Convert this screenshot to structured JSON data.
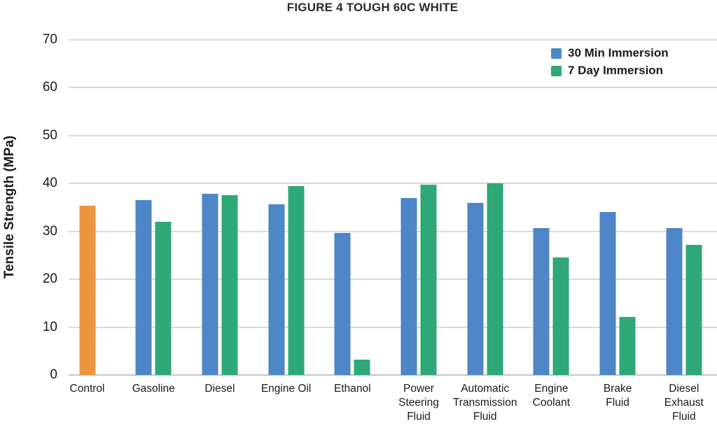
{
  "title": "FIGURE 4 TOUGH 60C WHITE",
  "colors": {
    "blue_30min": "#4E86C7",
    "green_7day": "#2EA876",
    "orange_control": "#EC9540",
    "gridline": "#D9D9D9",
    "axis_line": "#C6C6C6",
    "text": "#1A1A1A",
    "title_text": "#2B2B2B"
  },
  "legend": {
    "items": [
      {
        "label": "30 Min Immersion",
        "color": "#4E86C7"
      },
      {
        "label": "7 Day Immersion",
        "color": "#2EA876"
      }
    ],
    "position": "top-right"
  },
  "chart_data": {
    "type": "bar",
    "title": "FIGURE 4 TOUGH 60C WHITE",
    "xlabel": "",
    "ylabel": "Tensile Strength (MPa)",
    "ylim": [
      0,
      70
    ],
    "yticks": [
      0,
      10,
      20,
      30,
      40,
      50,
      60,
      70
    ],
    "grid": true,
    "legend_position": "top-right",
    "categories": [
      "Control",
      "Gasoline",
      "Diesel",
      "Engine Oil",
      "Ethanol",
      "Power Steering Fluid",
      "Automatic Transmission Fluid",
      "Engine Coolant",
      "Brake Fluid",
      "Diesel Exhaust Fluid"
    ],
    "categories_wrapped": [
      [
        "Control"
      ],
      [
        "Gasoline"
      ],
      [
        "Diesel"
      ],
      [
        "Engine Oil"
      ],
      [
        "Ethanol"
      ],
      [
        "Power",
        "Steering",
        "Fluid"
      ],
      [
        "Automatic",
        "Transmission",
        "Fluid"
      ],
      [
        "Engine",
        "Coolant"
      ],
      [
        "Brake",
        "Fluid"
      ],
      [
        "Diesel",
        "Exhaust",
        "Fluid"
      ]
    ],
    "series": [
      {
        "name": "30 Min Immersion",
        "color": "#4E86C7",
        "values": [
          35.3,
          36.6,
          37.8,
          35.7,
          29.7,
          37.0,
          35.9,
          30.7,
          34.0,
          30.7
        ]
      },
      {
        "name": "7 Day Immersion",
        "color": "#2EA876",
        "values": [
          null,
          32.0,
          37.5,
          39.5,
          3.2,
          39.8,
          40.0,
          24.5,
          12.2,
          27.2
        ]
      }
    ],
    "control_bar": {
      "category": "Control",
      "value": 35.3,
      "color": "#EC9540",
      "note": "single orange bar for Control category"
    }
  }
}
